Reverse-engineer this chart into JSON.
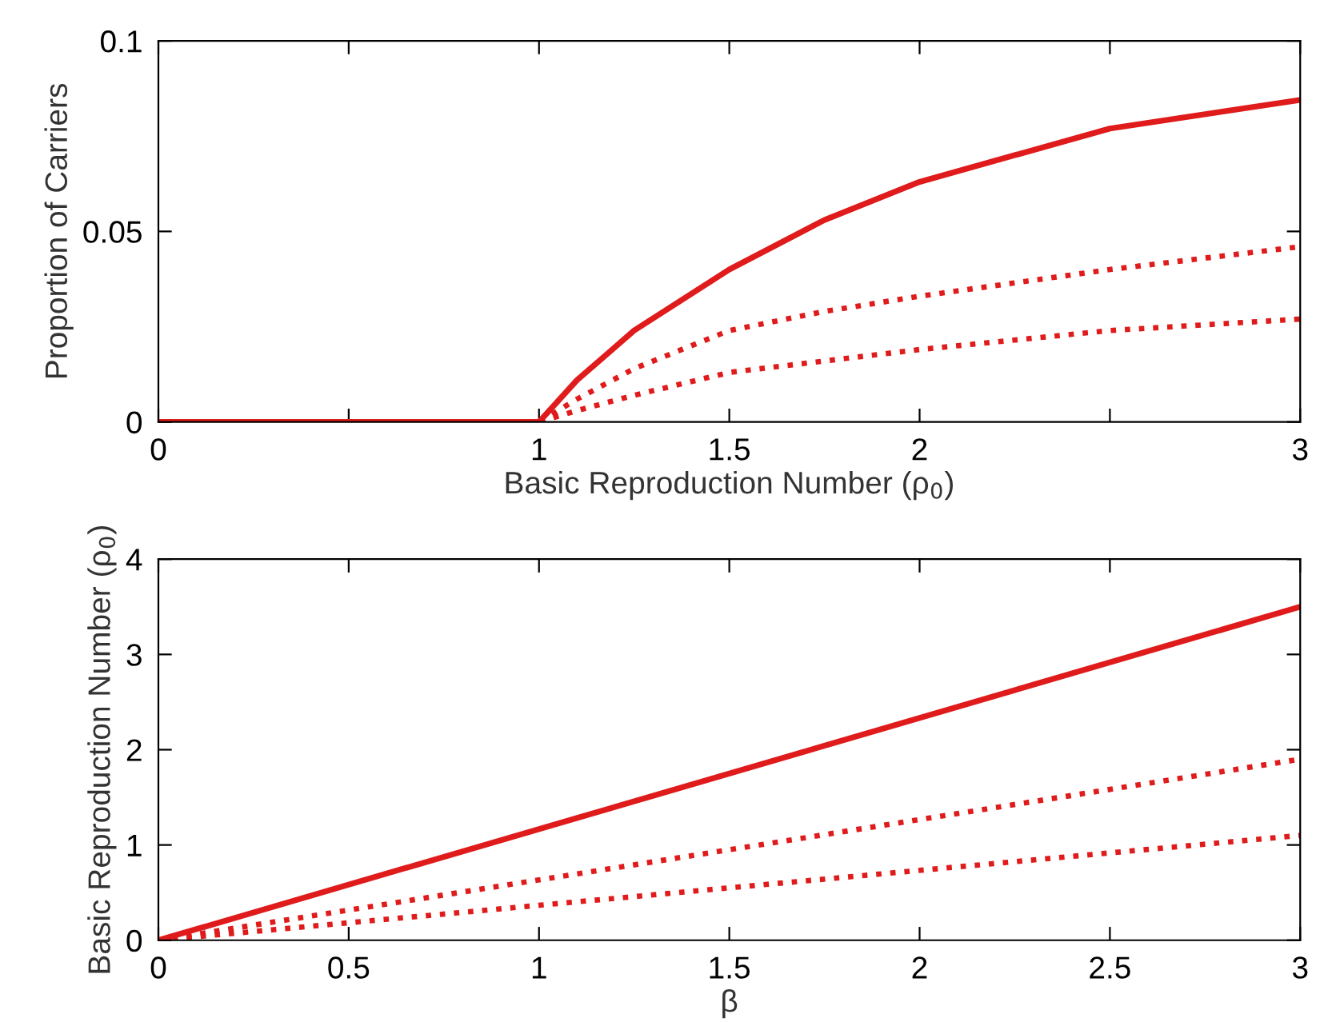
{
  "chart_data": [
    {
      "type": "line",
      "xlabel": "Basic Reproduction Number (ρ$_{0}$)",
      "ylabel": "Proportion of Carriers",
      "xlim": [
        0,
        3
      ],
      "ylim": [
        0,
        0.1
      ],
      "xticks": [
        0,
        {
          "value": 0.5,
          "label": null
        },
        1,
        1.5,
        2,
        {
          "value": 2.5,
          "label": null
        },
        3
      ],
      "yticks": [
        0,
        0.05,
        0.1
      ],
      "grid": false,
      "legend": false,
      "series": [
        {
          "color": "#e01b1b",
          "line_style": "solid",
          "x": [
            0,
            1,
            1.1,
            1.25,
            1.5,
            1.75,
            2,
            2.5,
            3
          ],
          "values": [
            0,
            0,
            0.011,
            0.024,
            0.04,
            0.053,
            0.063,
            0.077,
            0.0845
          ]
        },
        {
          "color": "#e01b1b",
          "line_style": "dotted",
          "x": [
            0,
            1,
            1.1,
            1.25,
            1.5,
            1.75,
            2,
            2.5,
            3
          ],
          "values": [
            0,
            0,
            0.006,
            0.014,
            0.024,
            0.029,
            0.033,
            0.04,
            0.046
          ]
        },
        {
          "color": "#e01b1b",
          "line_style": "dotted",
          "x": [
            0,
            1,
            1.1,
            1.25,
            1.5,
            1.75,
            2,
            2.5,
            3
          ],
          "values": [
            0,
            0,
            0.003,
            0.007,
            0.013,
            0.016,
            0.019,
            0.024,
            0.027
          ]
        }
      ]
    },
    {
      "type": "line",
      "xlabel": "β",
      "ylabel": "Basic Reproduction Number (ρ$_{0}$)",
      "xlim": [
        0,
        3
      ],
      "ylim": [
        0,
        4
      ],
      "xticks": [
        0,
        0.5,
        1,
        1.5,
        2,
        2.5,
        3
      ],
      "yticks": [
        0,
        1,
        2,
        3,
        4
      ],
      "grid": false,
      "legend": false,
      "series": [
        {
          "color": "#e01b1b",
          "line_style": "solid",
          "x": [
            0,
            3
          ],
          "values": [
            0,
            3.5
          ]
        },
        {
          "color": "#e01b1b",
          "line_style": "dotted",
          "x": [
            0,
            3
          ],
          "values": [
            0,
            1.9
          ]
        },
        {
          "color": "#e01b1b",
          "line_style": "dotted",
          "x": [
            0,
            3
          ],
          "values": [
            0,
            1.1
          ]
        }
      ]
    }
  ]
}
